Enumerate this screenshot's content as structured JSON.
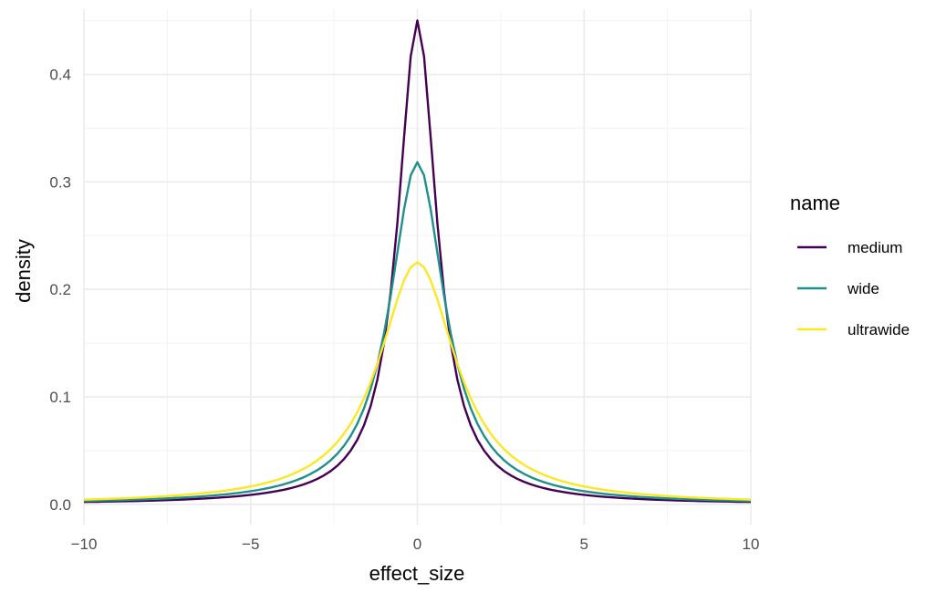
{
  "chart_data": {
    "type": "line",
    "title": "",
    "xlabel": "effect_size",
    "ylabel": "density",
    "xlim": [
      -10,
      10
    ],
    "ylim": [
      0,
      0.45
    ],
    "x_ticks": [
      -10,
      -5,
      0,
      5,
      10
    ],
    "x_tick_labels": [
      "−10",
      "−5",
      "0",
      "5",
      "10"
    ],
    "y_ticks": [
      0.0,
      0.1,
      0.2,
      0.3,
      0.4
    ],
    "y_tick_labels": [
      "0.0",
      "0.1",
      "0.2",
      "0.3",
      "0.4"
    ],
    "grid": true,
    "legend": {
      "title": "name",
      "position": "right"
    },
    "distribution": "cauchy",
    "series": [
      {
        "name": "medium",
        "scale": 0.7071,
        "color": "#440154",
        "peak": 0.442
      },
      {
        "name": "wide",
        "scale": 1.0,
        "color": "#21908C",
        "peak": 0.315
      },
      {
        "name": "ultrawide",
        "scale": 1.4142,
        "color": "#FDE725",
        "peak": 0.225
      }
    ]
  }
}
